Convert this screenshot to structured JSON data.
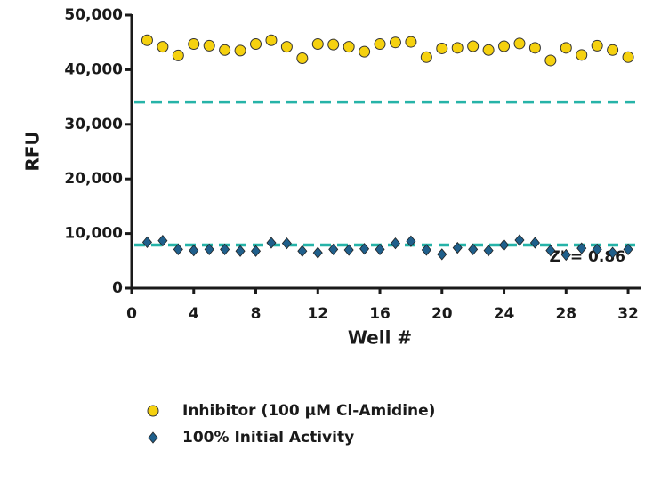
{
  "chart_data": {
    "type": "scatter",
    "x_label": "Well #",
    "y_label": "RFU",
    "xlim": [
      0,
      32.8
    ],
    "xticks": [
      0,
      4,
      8,
      12,
      16,
      20,
      24,
      28,
      32
    ],
    "ylim": [
      0,
      50000
    ],
    "yticks": [
      0,
      {
        "value": 10000,
        "label": "10,000"
      },
      {
        "value": 20000,
        "label": "20,000"
      },
      {
        "value": 30000,
        "label": "30,000"
      },
      {
        "value": 40000,
        "label": "40,000"
      },
      {
        "value": 50000,
        "label": "50,000"
      }
    ],
    "x": [
      1,
      2,
      3,
      4,
      5,
      6,
      7,
      8,
      9,
      10,
      11,
      12,
      13,
      14,
      15,
      16,
      17,
      18,
      19,
      20,
      21,
      22,
      23,
      24,
      25,
      26,
      27,
      28,
      29,
      30,
      31,
      32
    ],
    "series": [
      {
        "name": "Inhibitor (100 µM Cl-Amidine)",
        "color": "#f5d10f",
        "marker": "circle",
        "values": [
          45400,
          44200,
          42600,
          44700,
          44400,
          43600,
          43500,
          44700,
          45400,
          44200,
          42100,
          44700,
          44600,
          44200,
          43300,
          44700,
          45000,
          45100,
          42300,
          43900,
          44000,
          44300,
          43600,
          44300,
          44800,
          44000,
          41700,
          44000,
          42700,
          44400,
          43600,
          42300
        ]
      },
      {
        "name": "100% Initial Activity",
        "color": "#1f5f8b",
        "marker": "diamond",
        "values": [
          8400,
          8700,
          7100,
          6900,
          7100,
          7100,
          6800,
          6800,
          8300,
          8200,
          6800,
          6500,
          7100,
          7000,
          7200,
          7100,
          8200,
          8600,
          7000,
          6200,
          7400,
          7100,
          6900,
          7900,
          8800,
          8300,
          6900,
          6100,
          7300,
          7100,
          6500,
          7100
        ]
      }
    ],
    "reference_lines": [
      {
        "value": 34100,
        "color": "#26b3a8"
      },
      {
        "value": 7900,
        "color": "#26b3a8"
      }
    ],
    "annotation": "Z' = 0.86"
  }
}
